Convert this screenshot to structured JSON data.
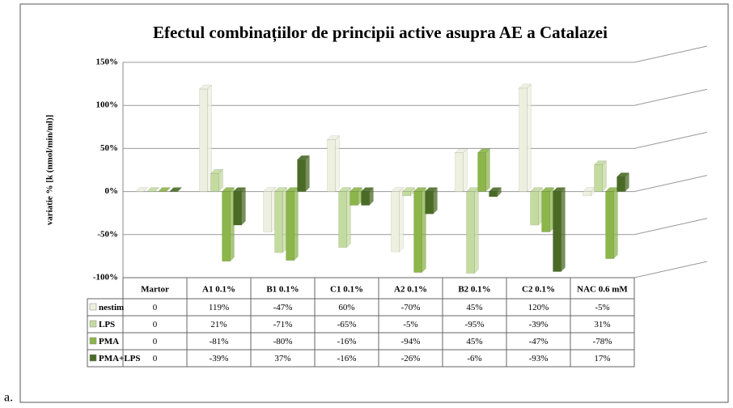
{
  "chart_data": {
    "type": "bar",
    "title": "Efectul combinațiilor de principii active asupra AE a Catalazei",
    "y_label": "variatie % [k (nmol/min/ml)]",
    "caption": "a.",
    "categories": [
      "Martor",
      "A1 0.1%",
      "B1 0.1%",
      "C1 0.1%",
      "A2 0.1%",
      "B2 0.1%",
      "C2 0.1%",
      "NAC 0.6 mM"
    ],
    "series": [
      {
        "name": "nestim",
        "color": "#eef0df",
        "values": [
          0,
          119,
          -47,
          60,
          -70,
          45,
          120,
          -5
        ],
        "value_labels": [
          "0",
          "119%",
          "-47%",
          "60%",
          "-70%",
          "45%",
          "120%",
          "-5%"
        ]
      },
      {
        "name": "LPS",
        "color": "#c4dba0",
        "values": [
          0,
          21,
          -71,
          -65,
          -5,
          -95,
          -39,
          31
        ],
        "value_labels": [
          "0",
          "21%",
          "-71%",
          "-65%",
          "-5%",
          "-95%",
          "-39%",
          "31%"
        ]
      },
      {
        "name": "PMA",
        "color": "#8cb54a",
        "values": [
          0,
          -81,
          -80,
          -16,
          -94,
          45,
          -47,
          -78
        ],
        "value_labels": [
          "0",
          "-81%",
          "-80%",
          "-16%",
          "-94%",
          "45%",
          "-47%",
          "-78%"
        ]
      },
      {
        "name": "PMA+LPS",
        "color": "#4a6b25",
        "values": [
          0,
          -39,
          37,
          -16,
          -26,
          -6,
          -93,
          17
        ],
        "value_labels": [
          "0",
          "-39%",
          "37%",
          "-16%",
          "-26%",
          "-6%",
          "-93%",
          "17%"
        ]
      }
    ],
    "ylim": [
      -100,
      150
    ],
    "yticks": [
      {
        "value": -100,
        "label": "-100%"
      },
      {
        "value": -50,
        "label": "-50%"
      },
      {
        "value": 0,
        "label": "0%"
      },
      {
        "value": 50,
        "label": "50%"
      },
      {
        "value": 100,
        "label": "100%"
      },
      {
        "value": 150,
        "label": "150%"
      }
    ],
    "grid": true
  }
}
